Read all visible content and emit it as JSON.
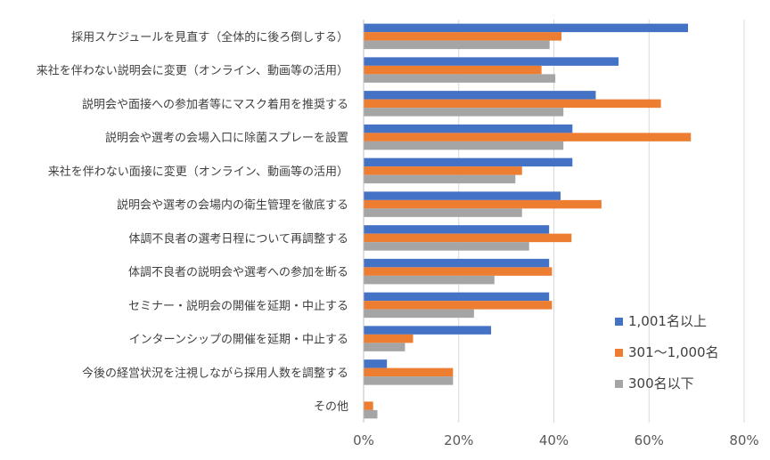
{
  "chart_data": {
    "type": "bar",
    "orientation": "horizontal",
    "categories": [
      "採用スケジュールを見直す（全体的に後ろ倒しする）",
      "来社を伴わない説明会に変更（オンライン、動画等の活用）",
      "説明会や面接への参加者等にマスク着用を推奨する",
      "説明会や選考の会場入口に除菌スプレーを設置",
      "来社を伴わない面接に変更（オンライン、動画等の活用）",
      "説明会や選考の会場内の衛生管理を徹底する",
      "体調不良者の選考日程について再調整する",
      "体調不良者の説明会や選考への参加を断る",
      "セミナー・説明会の開催を延期・中止する",
      "インターンシップの開催を延期・中止する",
      "今後の経営状況を注視しながら採用人数を調整する",
      "その他"
    ],
    "series": [
      {
        "name": "1,001名以上",
        "color": "#4472C4",
        "values": [
          68.2,
          53.6,
          48.8,
          43.9,
          43.9,
          41.4,
          39.0,
          39.0,
          39.0,
          26.8,
          4.9,
          0.0
        ]
      },
      {
        "name": "301～1,000名",
        "color": "#ED7D31",
        "values": [
          41.6,
          37.4,
          62.5,
          68.8,
          33.3,
          50.0,
          43.7,
          39.6,
          39.6,
          10.4,
          18.8,
          2.0
        ]
      },
      {
        "name": "300名以下",
        "color": "#A5A5A5",
        "values": [
          39.1,
          40.3,
          42.0,
          42.0,
          31.9,
          33.3,
          34.8,
          27.5,
          23.2,
          8.7,
          18.8,
          2.9
        ]
      }
    ],
    "xlim": [
      0,
      80
    ],
    "xticks": [
      0,
      20,
      40,
      60,
      80
    ],
    "x_tick_suffix": "%",
    "grid": true,
    "legend_position": "bottom-right",
    "title": "",
    "xlabel": "",
    "ylabel": ""
  }
}
